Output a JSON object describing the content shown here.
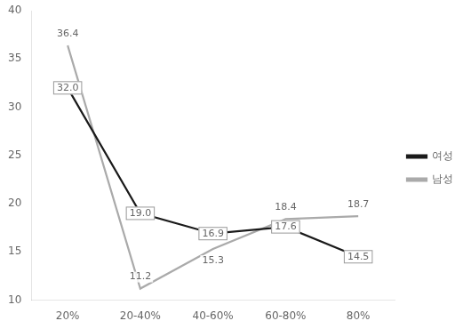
{
  "chart_data": {
    "type": "line",
    "categories": [
      "20%",
      "20-40%",
      "40-60%",
      "60-80%",
      "80%"
    ],
    "series": [
      {
        "name": "여성",
        "color": "#1a1a1a",
        "marker": "none",
        "values": [
          32.0,
          19.0,
          16.9,
          17.6,
          14.5
        ],
        "value_labels": [
          "32.0",
          "19.0",
          "16.9",
          "17.6",
          "14.5"
        ]
      },
      {
        "name": "남성",
        "color": "#aaaaaa",
        "marker": "none",
        "values": [
          36.4,
          11.2,
          15.3,
          18.4,
          18.7
        ],
        "value_labels": [
          "36.4",
          "11.2",
          "15.3",
          "18.4",
          "18.7"
        ]
      }
    ],
    "ylim": [
      10,
      40
    ],
    "yticks": [
      10,
      15,
      20,
      25,
      30,
      35,
      40
    ],
    "grid": false,
    "legend": "right",
    "data_labels": true
  }
}
